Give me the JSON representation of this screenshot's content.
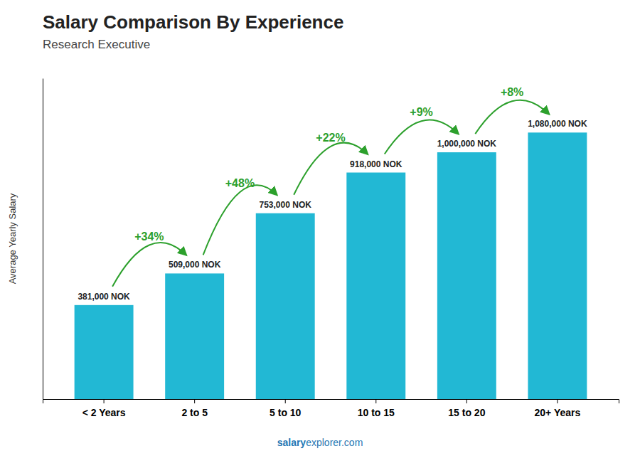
{
  "chart_data": {
    "type": "bar",
    "title": "Salary Comparison By Experience",
    "subtitle": "Research Executive",
    "ylabel": "Average Yearly Salary",
    "categories": [
      "< 2 Years",
      "2 to 5",
      "5 to 10",
      "10 to 15",
      "15 to 20",
      "20+ Years"
    ],
    "values": [
      381000,
      509000,
      753000,
      918000,
      1000000,
      1080000
    ],
    "value_labels": [
      "381,000 NOK",
      "509,000 NOK",
      "753,000 NOK",
      "918,000 NOK",
      "1,000,000 NOK",
      "1,080,000 NOK"
    ],
    "data_labels": true,
    "annotations": [
      null,
      "+34%",
      "+48%",
      "+22%",
      "+9%",
      "+8%"
    ],
    "footer": [
      "salary",
      "explorer.com"
    ],
    "color": "#22b8d4",
    "ylim": [
      0,
      1300000
    ],
    "tick_labels": "x"
  }
}
